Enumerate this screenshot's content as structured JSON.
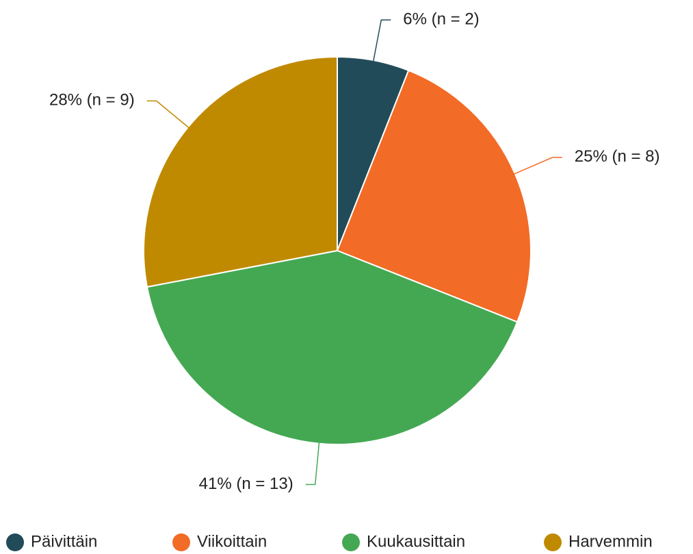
{
  "chart_data": {
    "type": "pie",
    "categories": [
      "Päivittäin",
      "Viikoittain",
      "Kuukausittain",
      "Harvemmin"
    ],
    "values": [
      6,
      25,
      41,
      28
    ],
    "value_labels": [
      "6% (n = 2)",
      "25% (n = 8)",
      "41% (n = 13)",
      "28% (n = 9)"
    ],
    "colors": [
      "#224b5a",
      "#f26b27",
      "#44a853",
      "#c08a00"
    ],
    "legend": "bottom"
  }
}
